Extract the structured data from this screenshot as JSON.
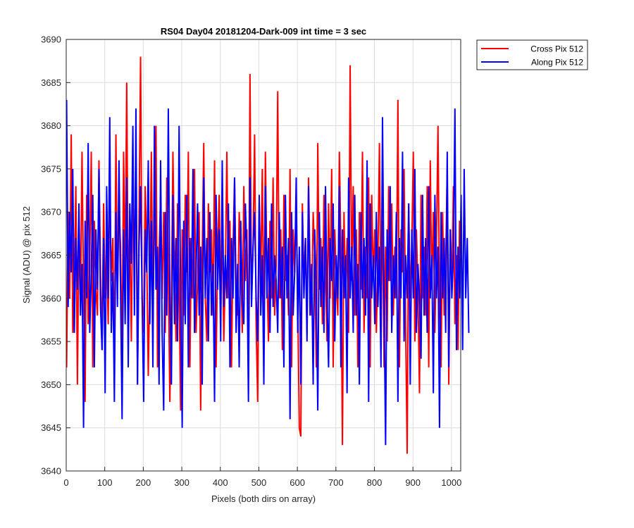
{
  "chart_data": {
    "type": "line",
    "title": "RS04 Day04 20181204-Dark-009 int time = 3 sec",
    "xlabel": "Pixels (both dirs on array)",
    "ylabel": "Signal (ADU) @ pix 512",
    "xlim": [
      0,
      1024
    ],
    "ylim": [
      3640,
      3690
    ],
    "xticks": [
      0,
      100,
      200,
      300,
      400,
      500,
      600,
      700,
      800,
      900,
      1000
    ],
    "yticks": [
      3640,
      3645,
      3650,
      3655,
      3660,
      3665,
      3670,
      3675,
      3680,
      3685,
      3690
    ],
    "grid": true,
    "legend": {
      "placement": "outside-top-right"
    },
    "series": [
      {
        "name": "Cross Pix 512",
        "color": "#ff0000",
        "x_start": 1,
        "x_step": 4,
        "values": [
          3652,
          3670,
          3660,
          3679,
          3656,
          3662,
          3673,
          3650,
          3668,
          3659,
          3677,
          3661,
          3648,
          3672,
          3657,
          3664,
          3677,
          3652,
          3669,
          3661,
          3658,
          3676,
          3663,
          3654,
          3671,
          3660,
          3665,
          3657,
          3674,
          3662,
          3667,
          3652,
          3679,
          3660,
          3671,
          3666,
          3653,
          3677,
          3662,
          3685,
          3660,
          3668,
          3655,
          3673,
          3664,
          3676,
          3650,
          3669,
          3688,
          3660,
          3656,
          3673,
          3665,
          3651,
          3662,
          3677,
          3659,
          3668,
          3680,
          3652,
          3665,
          3672,
          3660,
          3670,
          3656,
          3674,
          3663,
          3648,
          3660,
          3677,
          3664,
          3655,
          3671,
          3661,
          3647,
          3668,
          3658,
          3672,
          3663,
          3677,
          3652,
          3667,
          3660,
          3675,
          3656,
          3662,
          3670,
          3647,
          3665,
          3678,
          3660,
          3655,
          3671,
          3663,
          3668,
          3658,
          3676,
          3652,
          3665,
          3672,
          3660,
          3668,
          3655,
          3663,
          3677,
          3660,
          3669,
          3652,
          3666,
          3674,
          3661,
          3658,
          3670,
          3665,
          3656,
          3673,
          3662,
          3668,
          3651,
          3686,
          3660,
          3666,
          3679,
          3657,
          3648,
          3671,
          3662,
          3675,
          3656,
          3677,
          3663,
          3655,
          3669,
          3660,
          3674,
          3658,
          3664,
          3684,
          3660,
          3668,
          3654,
          3672,
          3662,
          3665,
          3658,
          3675,
          3652,
          3668,
          3663,
          3670,
          3660,
          3645,
          3644,
          3671,
          3662,
          3667,
          3656,
          3674,
          3663,
          3658,
          3670,
          3665,
          3652,
          3678,
          3661,
          3667,
          3657,
          3672,
          3663,
          3655,
          3671,
          3660,
          3675,
          3652,
          3668,
          3662,
          3658,
          3677,
          3666,
          3643,
          3670,
          3660,
          3667,
          3656,
          3687,
          3662,
          3673,
          3658,
          3668,
          3652,
          3670,
          3661,
          3677,
          3656,
          3666,
          3660,
          3674,
          3652,
          3672,
          3662,
          3668,
          3656,
          3664,
          3678,
          3660,
          3669,
          3652,
          3666,
          3655,
          3673,
          3662,
          3671,
          3658,
          3666,
          3660,
          3683,
          3652,
          3668,
          3663,
          3675,
          3657,
          3642,
          3671,
          3660,
          3666,
          3677,
          3655,
          3668,
          3661,
          3649,
          3672,
          3660,
          3666,
          3658,
          3673,
          3652,
          3676,
          3661,
          3670,
          3656,
          3666,
          3680,
          3660,
          3652,
          3670,
          3658,
          3664,
          3675,
          3650,
          3668,
          3661,
          3673,
          3657,
          3665,
          3654,
          3669
        ]
      },
      {
        "name": "Along Pix 512",
        "color": "#0000ff",
        "x_start": 1,
        "x_step": 4,
        "values": [
          3683,
          3659,
          3670,
          3663,
          3675,
          3656,
          3667,
          3661,
          3671,
          3658,
          3664,
          3645,
          3669,
          3660,
          3678,
          3656,
          3663,
          3672,
          3652,
          3668,
          3661,
          3675,
          3659,
          3654,
          3667,
          3649,
          3673,
          3660,
          3681,
          3656,
          3663,
          3648,
          3670,
          3659,
          3676,
          3661,
          3646,
          3668,
          3657,
          3674,
          3652,
          3671,
          3664,
          3680,
          3658,
          3682,
          3650,
          3666,
          3673,
          3660,
          3648,
          3668,
          3663,
          3676,
          3657,
          3669,
          3652,
          3680,
          3661,
          3666,
          3650,
          3676,
          3656,
          3647,
          3670,
          3658,
          3682,
          3660,
          3650,
          3672,
          3657,
          3667,
          3655,
          3680,
          3660,
          3645,
          3669,
          3657,
          3672,
          3652,
          3667,
          3660,
          3675,
          3656,
          3663,
          3671,
          3658,
          3666,
          3650,
          3674,
          3660,
          3667,
          3655,
          3670,
          3658,
          3664,
          3648,
          3672,
          3661,
          3668,
          3655,
          3676,
          3659,
          3665,
          3660,
          3671,
          3652,
          3667,
          3660,
          3674,
          3656,
          3664,
          3652,
          3669,
          3660,
          3657,
          3671,
          3665,
          3648,
          3674,
          3659,
          3666,
          3670,
          3660,
          3655,
          3672,
          3658,
          3665,
          3650,
          3673,
          3660,
          3667,
          3656,
          3671,
          3659,
          3665,
          3662,
          3656,
          3670,
          3660,
          3666,
          3652,
          3672,
          3660,
          3667,
          3646,
          3670,
          3658,
          3663,
          3674,
          3656,
          3666,
          3650,
          3670,
          3660,
          3667,
          3655,
          3673,
          3658,
          3664,
          3650,
          3668,
          3661,
          3647,
          3670,
          3659,
          3666,
          3656,
          3673,
          3660,
          3652,
          3667,
          3662,
          3671,
          3655,
          3665,
          3660,
          3673,
          3652,
          3668,
          3660,
          3665,
          3649,
          3674,
          3660,
          3666,
          3656,
          3672,
          3658,
          3664,
          3650,
          3670,
          3660,
          3667,
          3658,
          3676,
          3648,
          3671,
          3660,
          3665,
          3657,
          3670,
          3659,
          3666,
          3652,
          3681,
          3660,
          3643,
          3668,
          3662,
          3673,
          3656,
          3665,
          3660,
          3670,
          3648,
          3667,
          3660,
          3677,
          3655,
          3665,
          3660,
          3671,
          3650,
          3668,
          3660,
          3675,
          3656,
          3664,
          3660,
          3653,
          3672,
          3658,
          3667,
          3656,
          3673,
          3660,
          3665,
          3649,
          3672,
          3660,
          3666,
          3645,
          3670,
          3660,
          3667,
          3656,
          3677,
          3652,
          3668,
          3660,
          3665,
          3682,
          3654,
          3666,
          3660,
          3672,
          3654,
          3675,
          3660,
          3667,
          3656
        ]
      }
    ]
  }
}
